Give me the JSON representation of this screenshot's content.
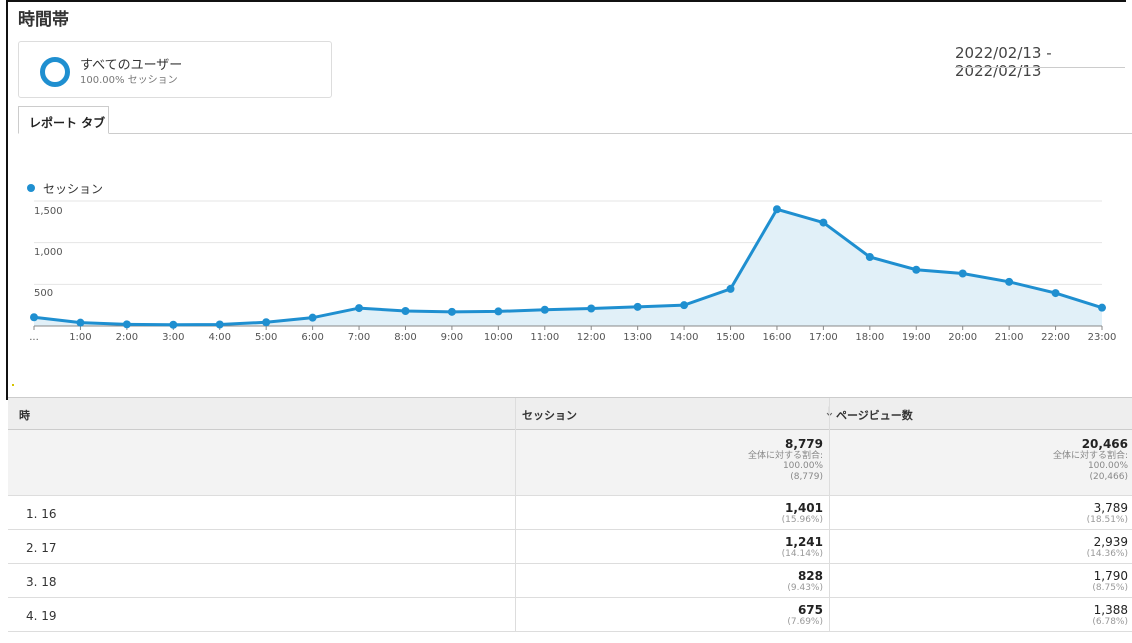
{
  "page_title": "時間帯",
  "segment": {
    "name": "すべてのユーザー",
    "share": "100.00% セッション"
  },
  "date_range": "2022/02/13 - 2022/02/13",
  "tab_label": "レポート タブ",
  "colors": {
    "accent": "#1f8fd0",
    "fill": "#e1f0f8"
  },
  "chart_data": {
    "type": "area",
    "series": [
      {
        "name": "セッション",
        "values": [
          105,
          40,
          20,
          15,
          18,
          45,
          100,
          215,
          180,
          170,
          175,
          195,
          210,
          230,
          250,
          445,
          1401,
          1241,
          828,
          675,
          630,
          530,
          395,
          220
        ]
      }
    ],
    "x": [
      "...",
      "1:00",
      "2:00",
      "3:00",
      "4:00",
      "5:00",
      "6:00",
      "7:00",
      "8:00",
      "9:00",
      "10:00",
      "11:00",
      "12:00",
      "13:00",
      "14:00",
      "15:00",
      "16:00",
      "17:00",
      "18:00",
      "19:00",
      "20:00",
      "21:00",
      "22:00",
      "23:00"
    ],
    "y_ticks": [
      "1,500",
      "1,000",
      "500"
    ],
    "y_tick_values": [
      1500,
      1000,
      500
    ],
    "ylim": [
      0,
      1500
    ],
    "legend": "top-left",
    "grid": true
  },
  "table": {
    "headers": {
      "dimension": "時",
      "sessions": "セッション",
      "pageviews": "ページビュー数"
    },
    "totals": {
      "sessions": {
        "value": "8,779",
        "label": "全体に対する割合:",
        "pct": "100.00%",
        "base": "(8,779)"
      },
      "pageviews": {
        "value": "20,466",
        "label": "全体に対する割合:",
        "pct": "100.00%",
        "base": "(20,466)"
      }
    },
    "rows": [
      {
        "label": "1.  16",
        "sessions": "1,401",
        "sessions_pct": "(15.96%)",
        "pageviews": "3,789",
        "pageviews_pct": "(18.51%)"
      },
      {
        "label": "2.  17",
        "sessions": "1,241",
        "sessions_pct": "(14.14%)",
        "pageviews": "2,939",
        "pageviews_pct": "(14.36%)"
      },
      {
        "label": "3.  18",
        "sessions": "828",
        "sessions_pct": "(9.43%)",
        "pageviews": "1,790",
        "pageviews_pct": "(8.75%)"
      },
      {
        "label": "4.  19",
        "sessions": "675",
        "sessions_pct": "(7.69%)",
        "pageviews": "1,388",
        "pageviews_pct": "(6.78%)"
      }
    ]
  }
}
